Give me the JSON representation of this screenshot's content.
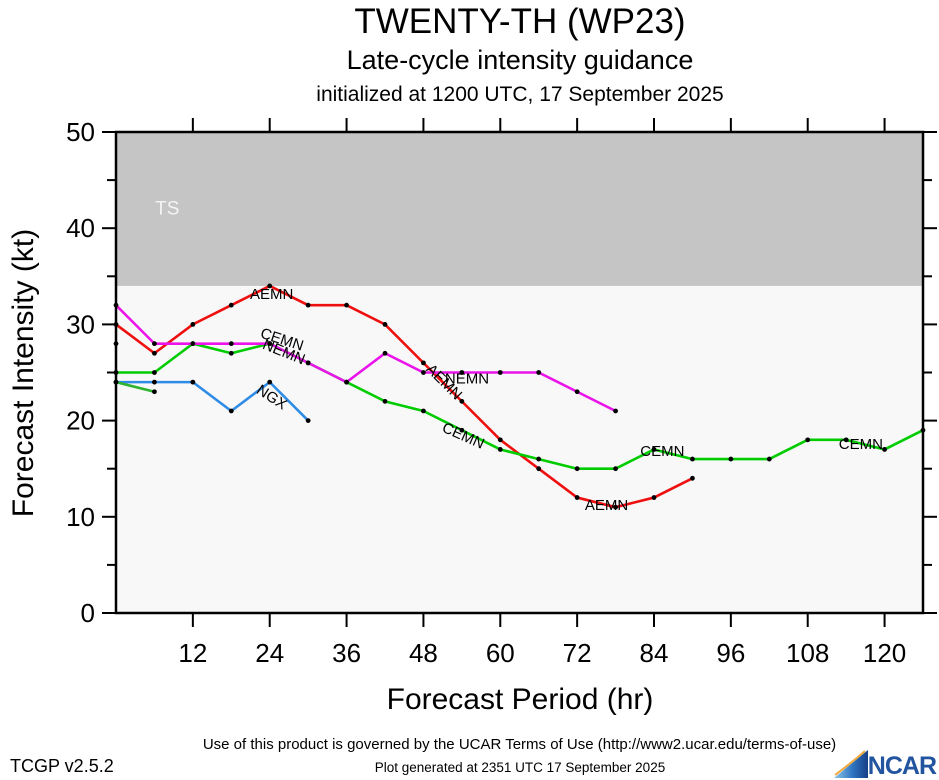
{
  "header": {
    "title": "TWENTY-TH (WP23)",
    "subtitle": "Late-cycle intensity guidance",
    "initialized": "initialized at 1200 UTC, 17 September 2025"
  },
  "footer": {
    "terms": "Use of this product is governed by the UCAR Terms of Use (http://www2.ucar.edu/terms-of-use)",
    "version": "TCGP v2.5.2",
    "generated": "Plot generated at 2351 UTC   17 September 2025",
    "ncar_label": "NCAR"
  },
  "chart_data": {
    "type": "line",
    "title": "TWENTY-TH (WP23)",
    "xlabel": "Forecast Period (hr)",
    "ylabel": "Forecast Intensity (kt)",
    "xlim": [
      0,
      126
    ],
    "ylim": [
      0,
      50
    ],
    "x_ticks": [
      12,
      24,
      36,
      48,
      60,
      72,
      84,
      96,
      108,
      120
    ],
    "y_ticks_major": [
      0,
      10,
      20,
      30,
      40,
      50
    ],
    "y_ticks_minor": [
      5,
      15,
      25,
      35,
      45
    ],
    "grid": false,
    "plot_bg": "#f8f8f8",
    "ts_band": {
      "label": "TS",
      "from_kt": 34,
      "to_kt": 50,
      "fill": "#c5c5c5",
      "label_color": "#f4f4f4"
    },
    "series": [
      {
        "name": "AEMN",
        "color": "#ee0f0f",
        "x": [
          0,
          6,
          12,
          18,
          24,
          30,
          36,
          42,
          48,
          54,
          60,
          66,
          72,
          78,
          84,
          90
        ],
        "values": [
          30,
          27,
          30,
          32,
          34,
          32,
          32,
          30,
          26,
          22,
          18,
          15,
          12,
          11,
          12,
          14
        ]
      },
      {
        "name": "CEMN",
        "color": "#00cc00",
        "x": [
          0,
          6,
          12,
          18,
          24,
          30,
          36,
          42,
          48,
          54,
          60,
          66,
          72,
          78,
          84,
          90,
          96,
          102,
          108,
          114,
          120,
          126
        ],
        "values": [
          25,
          25,
          28,
          27,
          28,
          26,
          24,
          22,
          21,
          19,
          17,
          16,
          15,
          15,
          17,
          16,
          16,
          16,
          18,
          18,
          17,
          19
        ]
      },
      {
        "name": "NEMN",
        "color": "#ea14ea",
        "x": [
          0,
          6,
          12,
          18,
          24,
          30,
          36,
          42,
          48,
          54,
          60,
          66,
          72,
          78
        ],
        "values": [
          32,
          28,
          28,
          28,
          28,
          26,
          24,
          27,
          25,
          25,
          25,
          25,
          23,
          21
        ]
      },
      {
        "name": "NGX",
        "color": "#2e8be6",
        "x": [
          0,
          6,
          12,
          18,
          24,
          30
        ],
        "values": [
          24,
          24,
          24,
          21,
          24,
          20
        ]
      },
      {
        "name": "",
        "color": "#2eb330",
        "x": [
          0,
          6
        ],
        "values": [
          24,
          23
        ]
      },
      {
        "name": "",
        "color": "#000000",
        "x": [
          0
        ],
        "values": [
          28
        ]
      }
    ],
    "annotations": [
      {
        "text": "TS",
        "hr": 8.0,
        "kt": 42.0,
        "rotate": 0,
        "color": "#f4f4f4",
        "size": 19
      },
      {
        "text": "AEMN",
        "hr": 24.3,
        "kt": 33.1,
        "rotate": 0
      },
      {
        "text": "CEMN",
        "hr": 25.9,
        "kt": 28.4,
        "rotate": 18
      },
      {
        "text": "NEMN",
        "hr": 26.2,
        "kt": 27.1,
        "rotate": 22
      },
      {
        "text": "NGX",
        "hr": 24.3,
        "kt": 22.4,
        "rotate": 33
      },
      {
        "text": "AEMN",
        "hr": 51.2,
        "kt": 24.0,
        "rotate": 45
      },
      {
        "text": "NEMN",
        "hr": 54.8,
        "kt": 24.3,
        "rotate": 0
      },
      {
        "text": "CEMN",
        "hr": 54.2,
        "kt": 18.4,
        "rotate": 24
      },
      {
        "text": "AEMN",
        "hr": 76.6,
        "kt": 11.2,
        "rotate": 0
      },
      {
        "text": "CEMN",
        "hr": 85.3,
        "kt": 16.8,
        "rotate": 0
      },
      {
        "text": "CEMN",
        "hr": 116.3,
        "kt": 17.5,
        "rotate": 0
      }
    ],
    "legend_position": "none"
  }
}
